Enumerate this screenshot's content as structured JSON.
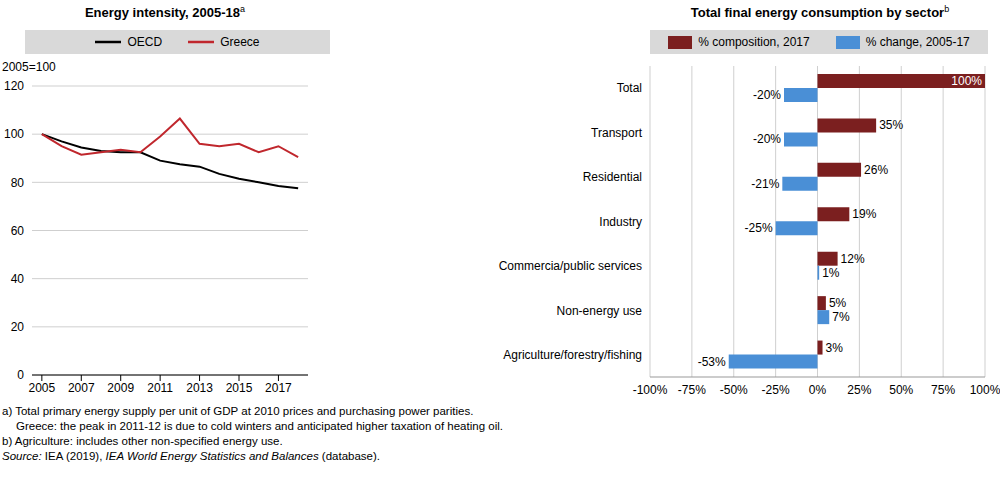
{
  "chart_data": [
    {
      "type": "line",
      "title": "Energy intensity, 2005-18",
      "title_note": "a",
      "ylabel": "2005=100",
      "x": [
        2005,
        2006,
        2007,
        2008,
        2009,
        2010,
        2011,
        2012,
        2013,
        2014,
        2015,
        2016,
        2017,
        2018
      ],
      "series": [
        {
          "name": "OECD",
          "color": "#000000",
          "values": [
            100,
            97,
            94.5,
            93,
            92.5,
            92.5,
            89,
            87.5,
            86.5,
            83.5,
            81.5,
            80,
            78.5,
            77.5
          ]
        },
        {
          "name": "Greece",
          "color": "#c0272d",
          "values": [
            100,
            95,
            91.5,
            92.5,
            93.5,
            92.5,
            99,
            106.5,
            96,
            95,
            96,
            92.5,
            95,
            90.5
          ]
        }
      ],
      "xlim": [
        2004.5,
        2018.5
      ],
      "xticks": [
        2005,
        2007,
        2009,
        2011,
        2013,
        2015,
        2017
      ],
      "ylim": [
        0,
        120
      ],
      "yticks": [
        0,
        20,
        40,
        60,
        80,
        100,
        120
      ],
      "grid": true,
      "legend": "top"
    },
    {
      "type": "bar",
      "orientation": "horizontal",
      "title": "Total final energy consumption by sector",
      "title_note": "b",
      "categories": [
        "Total",
        "Transport",
        "Residential",
        "Industry",
        "Commercia/public services",
        "Non-energy use",
        "Agriculture/forestry/fishing"
      ],
      "series": [
        {
          "name": "% composition, 2017",
          "color": "#7b1f1f",
          "values": [
            100,
            35,
            26,
            19,
            12,
            5,
            3
          ],
          "value_labels": [
            "100%",
            "35%",
            "26%",
            "19%",
            "12%",
            "5%",
            "3%"
          ]
        },
        {
          "name": "% change, 2005-17",
          "color": "#4a8fd6",
          "values": [
            -20,
            -20,
            -21,
            -25,
            1,
            7,
            -53
          ],
          "value_labels": [
            "-20%",
            "-20%",
            "-21%",
            "-25%",
            "1%",
            "7%",
            "-53%"
          ]
        }
      ],
      "xlim": [
        -100,
        100
      ],
      "xticks": [
        {
          "value": -100,
          "label": "-100%"
        },
        {
          "value": -75,
          "label": "-75%"
        },
        {
          "value": -50,
          "label": "-50%"
        },
        {
          "value": -25,
          "label": "-25%"
        },
        {
          "value": 0,
          "label": "0%"
        },
        {
          "value": 25,
          "label": "25%"
        },
        {
          "value": 50,
          "label": "50%"
        },
        {
          "value": 75,
          "label": "75%"
        },
        {
          "value": 100,
          "label": "100%"
        }
      ],
      "grid": true,
      "legend": "top",
      "data_labels": true
    }
  ],
  "notes": [
    "a) Total primary energy supply per unit of GDP at 2010 prices and purchasing power parities.",
    "Greece: the peak in 2011-12 is due to cold winters and anticipated higher taxation of heating oil.",
    "b) Agriculture: includes other non-specified energy use."
  ],
  "source": [
    "Source:",
    " IEA (2019), ",
    "IEA World Energy Statistics and Balances",
    " (database)."
  ]
}
